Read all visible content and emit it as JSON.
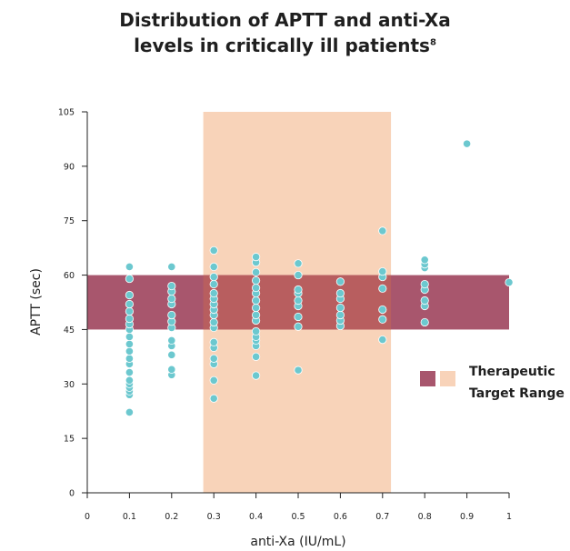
{
  "chart_data": {
    "type": "scatter",
    "title_line1": "Distribution of APTT and anti-Xa",
    "title_line2": "levels in critically ill patients",
    "title_sup": "8",
    "xlabel": "anti-Xa (IU/mL)",
    "ylabel": "APTT (sec)",
    "xlim": [
      0,
      1
    ],
    "ylim": [
      0,
      105
    ],
    "x_ticks": [
      {
        "v": 0,
        "label": "0"
      },
      {
        "v": 0.1,
        "label": "0.1"
      },
      {
        "v": 0.2,
        "label": "0.2"
      },
      {
        "v": 0.3,
        "label": "0.3"
      },
      {
        "v": 0.4,
        "label": "0.4"
      },
      {
        "v": 0.5,
        "label": "0.5"
      },
      {
        "v": 0.6,
        "label": "0.6"
      },
      {
        "v": 0.7,
        "label": "0.7"
      },
      {
        "v": 0.8,
        "label": "0.8"
      },
      {
        "v": 0.9,
        "label": "0.9"
      },
      {
        "v": 1,
        "label": "1"
      }
    ],
    "y_ticks": [
      {
        "v": 0,
        "label": "0"
      },
      {
        "v": 15,
        "label": "15"
      },
      {
        "v": 30,
        "label": "30"
      },
      {
        "v": 45,
        "label": "45"
      },
      {
        "v": 60,
        "label": "60"
      },
      {
        "v": 75,
        "label": "75"
      },
      {
        "v": 90,
        "label": "90"
      },
      {
        "v": 105,
        "label": "105"
      }
    ],
    "therapeutic_range": {
      "x_range": [
        0.275,
        0.72
      ],
      "y_range": [
        45,
        60
      ],
      "x_color": "#f8d3b9",
      "y_color": "#a8566d",
      "overlap_color": "#b85e5f"
    },
    "legend": {
      "label_line1": "Therapeutic",
      "label_line2": "Target Range",
      "placement": "right"
    },
    "point_color": "#6cc8cf",
    "points": [
      [
        0.1,
        22.2
      ],
      [
        0.1,
        27
      ],
      [
        0.1,
        28
      ],
      [
        0.1,
        29
      ],
      [
        0.1,
        30
      ],
      [
        0.1,
        31
      ],
      [
        0.1,
        33.2
      ],
      [
        0.1,
        35.5
      ],
      [
        0.1,
        37
      ],
      [
        0.1,
        39
      ],
      [
        0.1,
        41
      ],
      [
        0.1,
        43
      ],
      [
        0.1,
        45
      ],
      [
        0.1,
        46.5
      ],
      [
        0.1,
        48
      ],
      [
        0.1,
        50
      ],
      [
        0.1,
        52
      ],
      [
        0.1,
        54.5
      ],
      [
        0.1,
        59
      ],
      [
        0.1,
        62.3
      ],
      [
        0.2,
        32.5
      ],
      [
        0.2,
        34
      ],
      [
        0.2,
        38
      ],
      [
        0.2,
        40.5
      ],
      [
        0.2,
        42
      ],
      [
        0.2,
        45.5
      ],
      [
        0.2,
        47.2
      ],
      [
        0.2,
        49
      ],
      [
        0.2,
        52
      ],
      [
        0.2,
        53.5
      ],
      [
        0.2,
        55.5
      ],
      [
        0.2,
        57
      ],
      [
        0.2,
        62.3
      ],
      [
        0.3,
        26
      ],
      [
        0.3,
        31
      ],
      [
        0.3,
        35.5
      ],
      [
        0.3,
        37
      ],
      [
        0.3,
        40
      ],
      [
        0.3,
        41.5
      ],
      [
        0.3,
        45.5
      ],
      [
        0.3,
        47
      ],
      [
        0.3,
        49
      ],
      [
        0.3,
        50.5
      ],
      [
        0.3,
        52
      ],
      [
        0.3,
        53.5
      ],
      [
        0.3,
        55
      ],
      [
        0.3,
        57.5
      ],
      [
        0.3,
        59.5
      ],
      [
        0.3,
        62.3
      ],
      [
        0.3,
        66.8
      ],
      [
        0.4,
        32.3
      ],
      [
        0.4,
        37.5
      ],
      [
        0.4,
        40.5
      ],
      [
        0.4,
        42
      ],
      [
        0.4,
        43
      ],
      [
        0.4,
        44.5
      ],
      [
        0.4,
        47.5
      ],
      [
        0.4,
        49
      ],
      [
        0.4,
        51
      ],
      [
        0.4,
        53
      ],
      [
        0.4,
        55
      ],
      [
        0.4,
        56.5
      ],
      [
        0.4,
        58.5
      ],
      [
        0.4,
        60.8
      ],
      [
        0.4,
        63.5
      ],
      [
        0.4,
        65
      ],
      [
        0.5,
        33.8
      ],
      [
        0.5,
        45.8
      ],
      [
        0.5,
        48.5
      ],
      [
        0.5,
        51.5
      ],
      [
        0.5,
        53
      ],
      [
        0.5,
        55
      ],
      [
        0.5,
        56
      ],
      [
        0.5,
        60
      ],
      [
        0.5,
        63.2
      ],
      [
        0.6,
        46
      ],
      [
        0.6,
        47.5
      ],
      [
        0.6,
        49
      ],
      [
        0.6,
        51
      ],
      [
        0.6,
        53.5
      ],
      [
        0.6,
        55
      ],
      [
        0.6,
        58.2
      ],
      [
        0.7,
        42.2
      ],
      [
        0.7,
        47.8
      ],
      [
        0.7,
        50.5
      ],
      [
        0.7,
        56.3
      ],
      [
        0.7,
        59.5
      ],
      [
        0.7,
        61
      ],
      [
        0.7,
        72.2
      ],
      [
        0.8,
        47
      ],
      [
        0.8,
        51.5
      ],
      [
        0.8,
        53
      ],
      [
        0.8,
        56
      ],
      [
        0.8,
        57.5
      ],
      [
        0.8,
        62
      ],
      [
        0.8,
        63
      ],
      [
        0.8,
        64.2
      ],
      [
        0.9,
        96.2
      ],
      [
        1,
        58
      ]
    ]
  }
}
